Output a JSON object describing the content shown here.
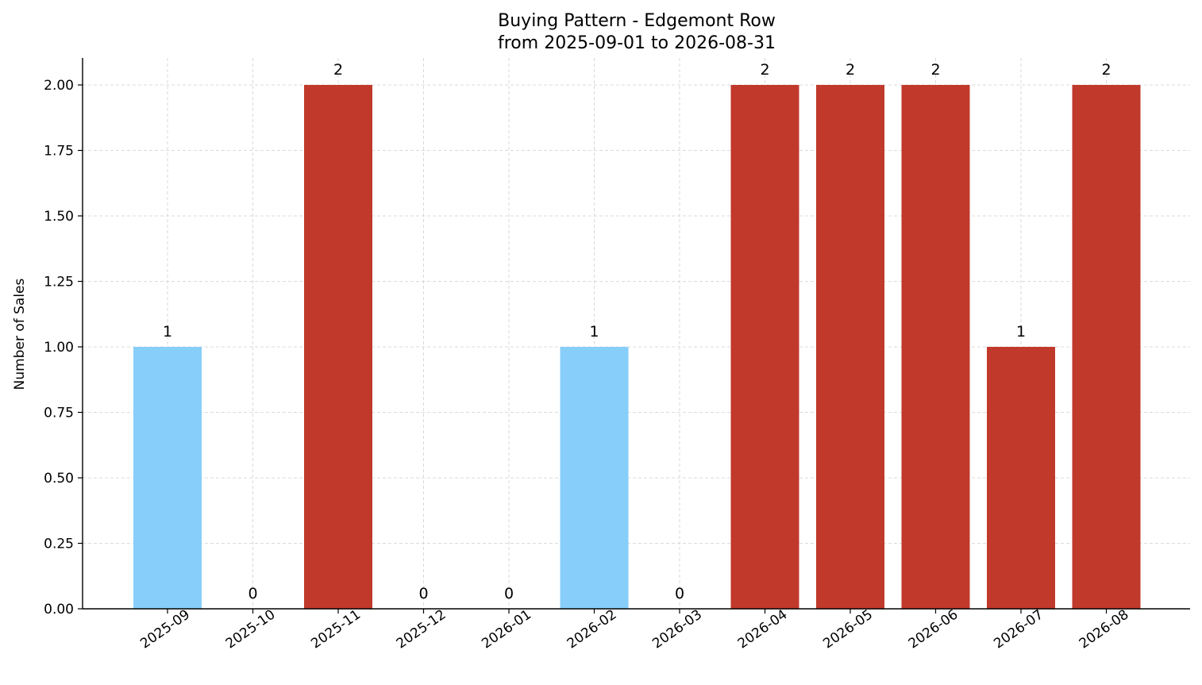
{
  "chart_data": {
    "type": "bar",
    "title": "Buying Pattern - Edgemont Row",
    "subtitle": "from 2025-09-01 to 2026-08-31",
    "xlabel": "",
    "ylabel": "Number of Sales",
    "ylim": [
      0,
      2.1
    ],
    "yticks": [
      "0.00",
      "0.25",
      "0.50",
      "0.75",
      "1.00",
      "1.25",
      "1.50",
      "1.75",
      "2.00"
    ],
    "grid": true,
    "categories": [
      "2025-09",
      "2025-10",
      "2025-11",
      "2025-12",
      "2026-01",
      "2026-02",
      "2026-03",
      "2026-04",
      "2026-05",
      "2026-06",
      "2026-07",
      "2026-08"
    ],
    "values": [
      1,
      0,
      2,
      0,
      0,
      1,
      0,
      2,
      2,
      2,
      1,
      2
    ],
    "bar_colors": [
      "#87CEFA",
      "#87CEFA",
      "#C0392B",
      "#87CEFA",
      "#87CEFA",
      "#87CEFA",
      "#87CEFA",
      "#C0392B",
      "#C0392B",
      "#C0392B",
      "#C0392B",
      "#C0392B"
    ],
    "data_labels": [
      "1",
      "0",
      "2",
      "0",
      "0",
      "1",
      "0",
      "2",
      "2",
      "2",
      "1",
      "2"
    ]
  }
}
